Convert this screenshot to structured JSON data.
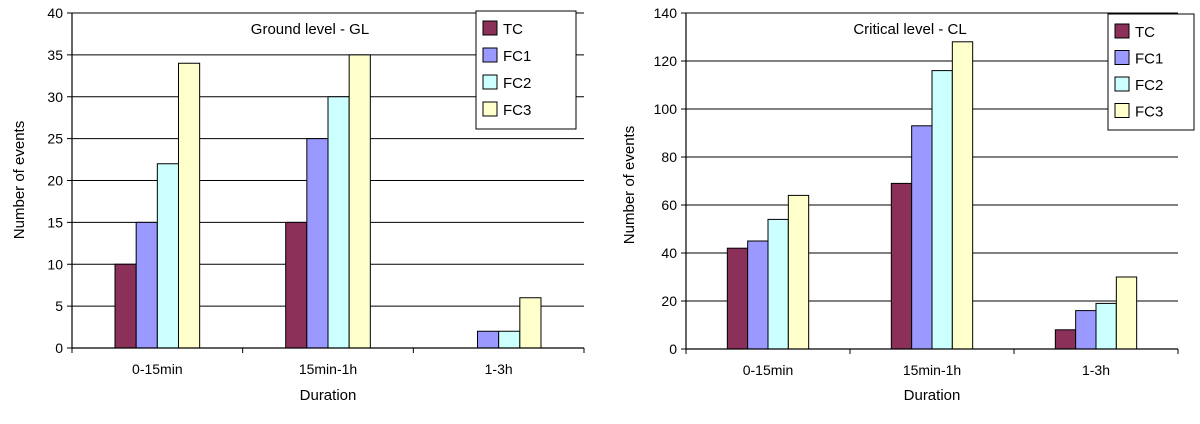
{
  "chart_data": [
    {
      "type": "bar",
      "title": "Ground level - GL",
      "xlabel": "Duration",
      "ylabel": "Number of events",
      "categories": [
        "0-15min",
        "15min-1h",
        "1-3h"
      ],
      "ylim": [
        0,
        40
      ],
      "yticks": [
        0,
        5,
        10,
        15,
        20,
        25,
        30,
        35,
        40
      ],
      "grid": true,
      "legend_position": "top-right",
      "series": [
        {
          "name": "TC",
          "color": "#8B3058",
          "values": [
            10,
            15,
            0
          ]
        },
        {
          "name": "FC1",
          "color": "#9999FF",
          "values": [
            15,
            25,
            2
          ]
        },
        {
          "name": "FC2",
          "color": "#CCFFFF",
          "values": [
            22,
            30,
            2
          ]
        },
        {
          "name": "FC3",
          "color": "#FFFFCC",
          "values": [
            34,
            35,
            6
          ]
        }
      ]
    },
    {
      "type": "bar",
      "title": "Critical level - CL",
      "xlabel": "Duration",
      "ylabel": "Number of events",
      "categories": [
        "0-15min",
        "15min-1h",
        "1-3h"
      ],
      "ylim": [
        0,
        140
      ],
      "yticks": [
        0,
        20,
        40,
        60,
        80,
        100,
        120,
        140
      ],
      "grid": true,
      "legend_position": "top-right",
      "series": [
        {
          "name": "TC",
          "color": "#8B3058",
          "values": [
            42,
            69,
            8
          ]
        },
        {
          "name": "FC1",
          "color": "#9999FF",
          "values": [
            45,
            93,
            16
          ]
        },
        {
          "name": "FC2",
          "color": "#CCFFFF",
          "values": [
            54,
            116,
            19
          ]
        },
        {
          "name": "FC3",
          "color": "#FFFFCC",
          "values": [
            64,
            128,
            30
          ]
        }
      ]
    }
  ]
}
